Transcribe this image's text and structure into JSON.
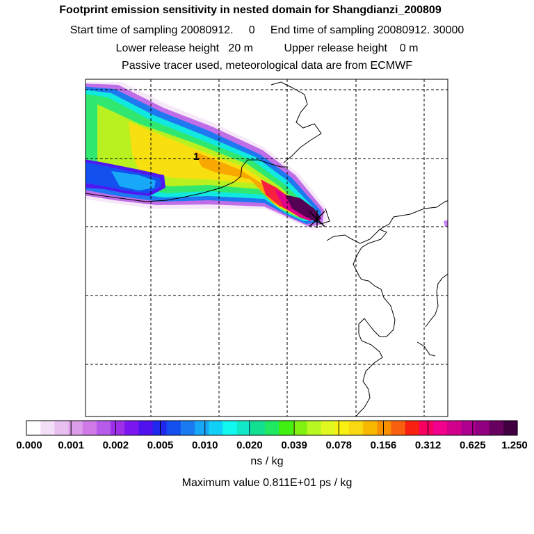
{
  "header": {
    "title": "Footprint emission sensitivity in nested domain for Shangdianzi_200809",
    "line_sampling": "Start time of sampling 20080912.     0     End time of sampling 20080912. 30000",
    "line_release": "Lower release height   20 m          Upper release height    0 m",
    "line_tracer": "Passive tracer used, meteorological data are from ECMWF"
  },
  "map": {
    "marker_label": "1",
    "receptor_symbol": "star-marker"
  },
  "colorbar": {
    "ticks": [
      "0.000",
      "0.001",
      "0.002",
      "0.005",
      "0.010",
      "0.020",
      "0.039",
      "0.078",
      "0.156",
      "0.312",
      "0.625",
      "1.250"
    ],
    "colors": [
      "#ffffff",
      "#f3dff7",
      "#e8c0f0",
      "#dc9ee9",
      "#cf7ae6",
      "#b65bea",
      "#9d2fe8",
      "#7a16f0",
      "#5010f0",
      "#2028f0",
      "#1450f0",
      "#1a7af0",
      "#18a8f8",
      "#10d0f8",
      "#10f8f0",
      "#10e8c8",
      "#10e090",
      "#20e860",
      "#40f010",
      "#80f010",
      "#b8f820",
      "#e0f820",
      "#f8f010",
      "#f8d810",
      "#f8b800",
      "#f89000",
      "#f86010",
      "#f82010",
      "#f80060",
      "#f0008c",
      "#d0008c",
      "#b00090",
      "#900080",
      "#680060",
      "#400040"
    ],
    "unit": "ns / kg"
  },
  "footer": {
    "max_value": "Maximum value  0.811E+01 ps / kg"
  }
}
